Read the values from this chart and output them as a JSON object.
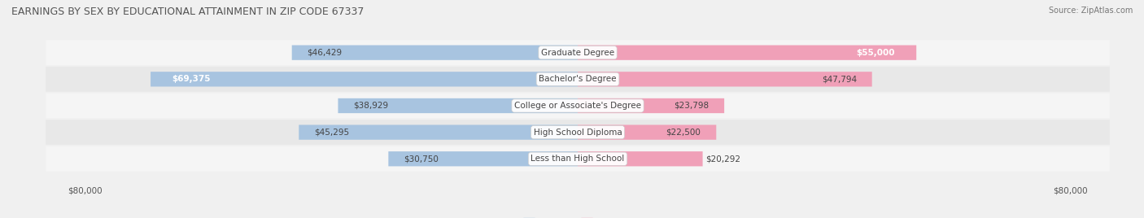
{
  "title": "EARNINGS BY SEX BY EDUCATIONAL ATTAINMENT IN ZIP CODE 67337",
  "source": "Source: ZipAtlas.com",
  "categories": [
    "Less than High School",
    "High School Diploma",
    "College or Associate's Degree",
    "Bachelor's Degree",
    "Graduate Degree"
  ],
  "male_values": [
    30750,
    45295,
    38929,
    69375,
    46429
  ],
  "female_values": [
    20292,
    22500,
    23798,
    47794,
    55000
  ],
  "male_color": "#a8c4e0",
  "female_color": "#f0a0b8",
  "axis_max": 80000,
  "bg_color": "#f0f0f0",
  "row_colors": [
    "#f5f5f5",
    "#e8e8e8"
  ],
  "title_fontsize": 9,
  "label_fontsize": 7.5,
  "tick_fontsize": 7.5,
  "legend_fontsize": 8
}
